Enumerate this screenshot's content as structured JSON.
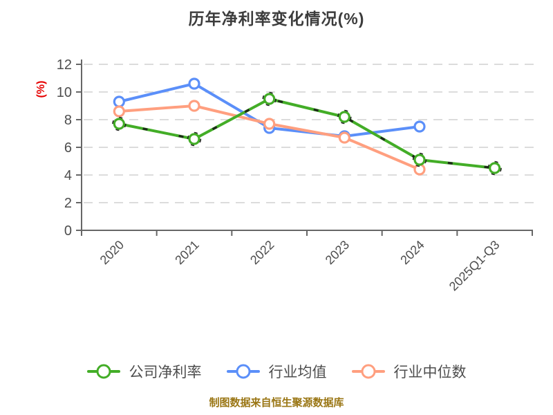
{
  "title": "历年净利率变化情况(%)",
  "footer": {
    "text": "制图数据来自恒生聚源数据库",
    "color": "#9A7614"
  },
  "y_axis_label": {
    "text": "(%)",
    "color": "#E60000"
  },
  "chart_data": {
    "type": "line",
    "title": "历年净利率变化情况(%)",
    "categories": [
      "2020",
      "2021",
      "2022",
      "2023",
      "2024",
      "2025Q1-Q3"
    ],
    "series": [
      {
        "name": "公司净利率",
        "color": "#43AD27",
        "dark_dash_overlay": true,
        "values": [
          7.7,
          6.6,
          9.5,
          8.2,
          5.1,
          4.5
        ]
      },
      {
        "name": "行业均值",
        "color": "#5B8FF9",
        "dark_dash_overlay": false,
        "values": [
          9.3,
          10.6,
          7.4,
          6.8,
          7.5,
          null
        ]
      },
      {
        "name": "行业中位数",
        "color": "#FF9F7F",
        "dark_dash_overlay": false,
        "values": [
          8.6,
          9.0,
          7.7,
          6.7,
          4.4,
          null
        ]
      }
    ],
    "xlabel": "",
    "ylabel": "(%)",
    "ylim": [
      0,
      12
    ],
    "y_ticks": [
      0,
      2,
      4,
      6,
      8,
      10,
      12
    ],
    "x_tick_rotation_deg": 45,
    "grid": "horizontal dashed",
    "legend_position": "bottom",
    "marker": "circle-white-fill",
    "axis_color": "#666666",
    "grid_color": "#DCDCDC",
    "tick_label_color": "#4D4D4D"
  }
}
